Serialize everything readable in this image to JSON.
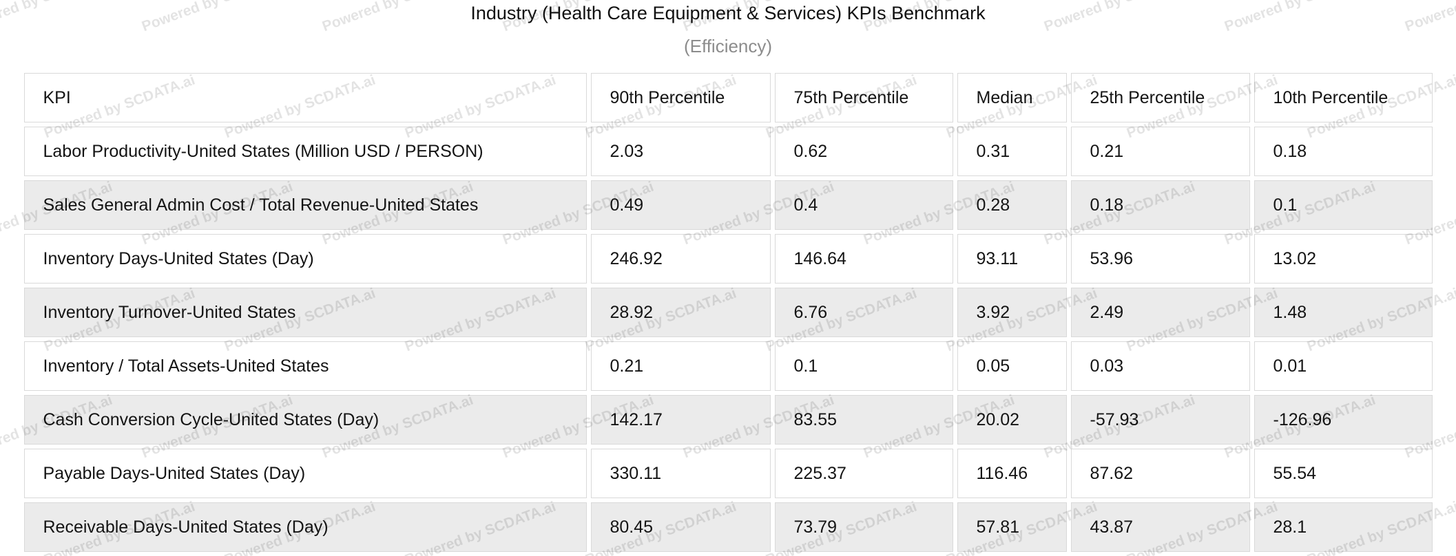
{
  "title": "Industry (Health Care Equipment & Services) KPIs Benchmark",
  "subtitle": "(Efficiency)",
  "watermark": {
    "text": "Powered by SCDATA.ai"
  },
  "colors": {
    "stripe_row_bg": "#ebebeb",
    "cell_border": "#d9d9d9",
    "subtitle_text": "#8c8c8c",
    "watermark_text": "rgba(0,0,0,0.11)"
  },
  "table": {
    "columns": [
      "KPI",
      "90th Percentile",
      "75th Percentile",
      "Median",
      "25th Percentile",
      "10th Percentile"
    ],
    "rows": [
      {
        "kpi": "Labor Productivity-United States (Million USD / PERSON)",
        "values": [
          "2.03",
          "0.62",
          "0.31",
          "0.21",
          "0.18"
        ]
      },
      {
        "kpi": "Sales General Admin Cost / Total Revenue-United States",
        "values": [
          "0.49",
          "0.4",
          "0.28",
          "0.18",
          "0.1"
        ]
      },
      {
        "kpi": "Inventory Days-United States (Day)",
        "values": [
          "246.92",
          "146.64",
          "93.11",
          "53.96",
          "13.02"
        ]
      },
      {
        "kpi": "Inventory Turnover-United States",
        "values": [
          "28.92",
          "6.76",
          "3.92",
          "2.49",
          "1.48"
        ]
      },
      {
        "kpi": "Inventory / Total Assets-United States",
        "values": [
          "0.21",
          "0.1",
          "0.05",
          "0.03",
          "0.01"
        ]
      },
      {
        "kpi": "Cash Conversion Cycle-United States (Day)",
        "values": [
          "142.17",
          "83.55",
          "20.02",
          "-57.93",
          "-126.96"
        ]
      },
      {
        "kpi": "Payable Days-United States (Day)",
        "values": [
          "330.11",
          "225.37",
          "116.46",
          "87.62",
          "55.54"
        ]
      },
      {
        "kpi": "Receivable Days-United States (Day)",
        "values": [
          "80.45",
          "73.79",
          "57.81",
          "43.87",
          "28.1"
        ]
      }
    ]
  },
  "chart_data": {
    "type": "table",
    "title": "Industry (Health Care Equipment & Services) KPIs Benchmark",
    "subtitle": "(Efficiency)",
    "columns": [
      "KPI",
      "90th Percentile",
      "75th Percentile",
      "Median",
      "25th Percentile",
      "10th Percentile"
    ],
    "rows": [
      [
        "Labor Productivity-United States (Million USD / PERSON)",
        2.03,
        0.62,
        0.31,
        0.21,
        0.18
      ],
      [
        "Sales General Admin Cost / Total Revenue-United States",
        0.49,
        0.4,
        0.28,
        0.18,
        0.1
      ],
      [
        "Inventory Days-United States (Day)",
        246.92,
        146.64,
        93.11,
        53.96,
        13.02
      ],
      [
        "Inventory Turnover-United States",
        28.92,
        6.76,
        3.92,
        2.49,
        1.48
      ],
      [
        "Inventory / Total Assets-United States",
        0.21,
        0.1,
        0.05,
        0.03,
        0.01
      ],
      [
        "Cash Conversion Cycle-United States (Day)",
        142.17,
        83.55,
        20.02,
        -57.93,
        -126.96
      ],
      [
        "Payable Days-United States (Day)",
        330.11,
        225.37,
        116.46,
        87.62,
        55.54
      ],
      [
        "Receivable Days-United States (Day)",
        80.45,
        73.79,
        57.81,
        43.87,
        28.1
      ]
    ],
    "layout_hints": {
      "striped_rows": "even data rows shaded #ebebeb",
      "header_style": "regular weight, white background",
      "watermark": "Powered by SCDATA.ai repeated diagonally"
    }
  }
}
